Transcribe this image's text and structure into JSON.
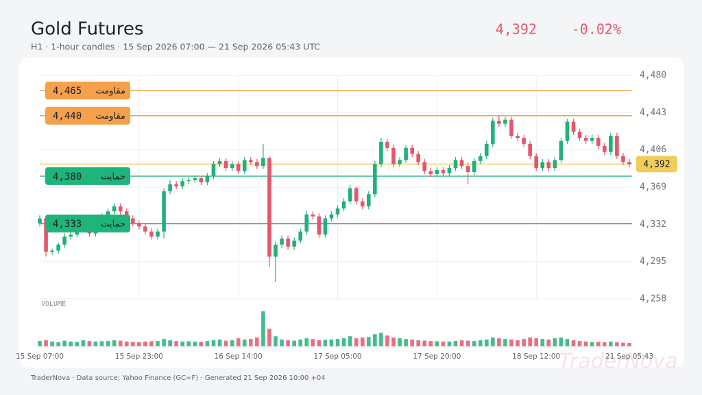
{
  "chart_data": {
    "type": "candlestick",
    "title": "Gold Futures",
    "subtitle": "H1 · 1-hour candles · 15 Sep 2026 07:00 — 21 Sep 2026 05:43 UTC",
    "last_price": {
      "value": 4392,
      "label": "4,392"
    },
    "change": {
      "value": -0.02,
      "label": "-0.02%"
    },
    "volume_label": "VOLUME",
    "footer": "TraderNova · Data source: Yahoo Finance (GC=F) · Generated 21 Sep 2026 10:00 +04",
    "watermark": "TraderNova",
    "up_color": "#22b07d",
    "down_color": "#e5566c",
    "ylim": [
      4258,
      4480
    ],
    "yticks": [
      {
        "value": 4258,
        "label": "4,258"
      },
      {
        "value": 4295,
        "label": "4,295"
      },
      {
        "value": 4332,
        "label": "4,332"
      },
      {
        "value": 4369,
        "label": "4,369"
      },
      {
        "value": 4406,
        "label": "4,406"
      },
      {
        "value": 4443,
        "label": "4,443"
      },
      {
        "value": 4480,
        "label": "4,480"
      }
    ],
    "grid": true,
    "x_labels": [
      {
        "index": 0,
        "label": "15 Sep 07:00"
      },
      {
        "index": 16,
        "label": "15 Sep 23:00"
      },
      {
        "index": 32,
        "label": "16 Sep 14:00"
      },
      {
        "index": 48,
        "label": "17 Sep 05:00"
      },
      {
        "index": 64,
        "label": "17 Sep 20:00"
      },
      {
        "index": 80,
        "label": "18 Sep 12:00"
      },
      {
        "index": 95,
        "label": "21 Sep 05:43"
      }
    ],
    "levels": [
      {
        "value": 4465,
        "label": "4,465",
        "name": "مقاومت",
        "color": "#f5a04a"
      },
      {
        "value": 4440,
        "label": "4,440",
        "name": "مقاومت",
        "color": "#f5a04a"
      },
      {
        "value": 4380,
        "label": "4,380",
        "name": "حمایت",
        "color": "#1fb47a"
      },
      {
        "value": 4333,
        "label": "4,333",
        "name": "حمایت",
        "color": "#1fb47a"
      }
    ],
    "last_price_color": "#f2cc5a",
    "open": [
      4333,
      4338,
      4305,
      4306,
      4312,
      4320,
      4322,
      4328,
      4330,
      4323,
      4332,
      4340,
      4345,
      4350,
      4345,
      4338,
      4333,
      4330,
      4325,
      4320,
      4325,
      4365,
      4372,
      4370,
      4375,
      4376,
      4378,
      4374,
      4380,
      4392,
      4395,
      4388,
      4392,
      4385,
      4396,
      4394,
      4390,
      4398,
      4300,
      4312,
      4318,
      4310,
      4316,
      4325,
      4342,
      4340,
      4322,
      4338,
      4342,
      4348,
      4355,
      4368,
      4355,
      4350,
      4362,
      4392,
      4414,
      4408,
      4392,
      4396,
      4408,
      4402,
      4394,
      4385,
      4382,
      4386,
      4383,
      4388,
      4396,
      4390,
      4384,
      4395,
      4400,
      4412,
      4435,
      4432,
      4436,
      4420,
      4418,
      4412,
      4400,
      4388,
      4394,
      4388,
      4396,
      4415,
      4434,
      4424,
      4418,
      4415,
      4418,
      4410,
      4404,
      4420,
      4400,
      4394
    ],
    "high": [
      4341,
      4340,
      4308,
      4314,
      4323,
      4325,
      4331,
      4333,
      4333,
      4335,
      4343,
      4348,
      4353,
      4353,
      4348,
      4341,
      4336,
      4333,
      4328,
      4328,
      4368,
      4376,
      4375,
      4378,
      4379,
      4381,
      4380,
      4383,
      4395,
      4398,
      4398,
      4395,
      4395,
      4399,
      4399,
      4397,
      4412,
      4400,
      4315,
      4321,
      4321,
      4319,
      4328,
      4345,
      4345,
      4343,
      4341,
      4345,
      4351,
      4358,
      4371,
      4370,
      4358,
      4365,
      4395,
      4418,
      4417,
      4411,
      4399,
      4411,
      4411,
      4405,
      4397,
      4388,
      4389,
      4389,
      4391,
      4399,
      4399,
      4393,
      4398,
      4403,
      4415,
      4438,
      4440,
      4439,
      4439,
      4423,
      4421,
      4415,
      4403,
      4397,
      4397,
      4399,
      4418,
      4437,
      4437,
      4427,
      4421,
      4421,
      4421,
      4413,
      4423,
      4423,
      4403,
      4397
    ],
    "low": [
      4330,
      4300,
      4302,
      4303,
      4309,
      4317,
      4319,
      4325,
      4320,
      4320,
      4329,
      4337,
      4342,
      4342,
      4335,
      4330,
      4327,
      4322,
      4317,
      4317,
      4318,
      4362,
      4367,
      4367,
      4372,
      4373,
      4371,
      4371,
      4377,
      4389,
      4385,
      4385,
      4382,
      4382,
      4391,
      4387,
      4387,
      4290,
      4275,
      4309,
      4307,
      4307,
      4313,
      4322,
      4337,
      4319,
      4319,
      4335,
      4339,
      4345,
      4352,
      4352,
      4347,
      4347,
      4359,
      4389,
      4405,
      4389,
      4389,
      4393,
      4399,
      4391,
      4382,
      4379,
      4379,
      4380,
      4380,
      4385,
      4387,
      4372,
      4381,
      4392,
      4397,
      4409,
      4429,
      4429,
      4417,
      4415,
      4409,
      4397,
      4385,
      4385,
      4385,
      4385,
      4393,
      4412,
      4421,
      4415,
      4412,
      4412,
      4407,
      4401,
      4401,
      4397,
      4391,
      4389
    ],
    "close": [
      4338,
      4305,
      4306,
      4312,
      4320,
      4322,
      4328,
      4330,
      4323,
      4332,
      4340,
      4345,
      4350,
      4345,
      4338,
      4333,
      4330,
      4325,
      4320,
      4325,
      4365,
      4372,
      4370,
      4375,
      4376,
      4378,
      4374,
      4380,
      4392,
      4395,
      4388,
      4392,
      4385,
      4396,
      4394,
      4390,
      4398,
      4300,
      4312,
      4318,
      4310,
      4316,
      4325,
      4342,
      4340,
      4322,
      4338,
      4342,
      4348,
      4355,
      4368,
      4355,
      4350,
      4362,
      4392,
      4414,
      4408,
      4392,
      4396,
      4408,
      4402,
      4394,
      4385,
      4382,
      4386,
      4383,
      4388,
      4396,
      4390,
      4384,
      4395,
      4400,
      4412,
      4435,
      4432,
      4436,
      4420,
      4418,
      4412,
      4400,
      4388,
      4394,
      4388,
      4396,
      4415,
      4434,
      4424,
      4418,
      4415,
      4418,
      4410,
      4404,
      4420,
      4400,
      4394,
      4392
    ],
    "volume": [
      800,
      900,
      700,
      600,
      850,
      700,
      650,
      900,
      800,
      700,
      750,
      800,
      900,
      850,
      700,
      650,
      600,
      700,
      750,
      800,
      1100,
      900,
      800,
      700,
      750,
      700,
      650,
      800,
      900,
      1000,
      850,
      900,
      1200,
      1000,
      1100,
      1300,
      5200,
      2600,
      1500,
      1000,
      900,
      850,
      1000,
      1200,
      1100,
      900,
      950,
      1000,
      1100,
      1200,
      1500,
      1200,
      1300,
      1400,
      1800,
      2000,
      1600,
      1300,
      1200,
      1100,
      1000,
      900,
      850,
      800,
      750,
      700,
      700,
      800,
      900,
      850,
      800,
      900,
      1000,
      1300,
      1200,
      1100,
      1000,
      900,
      1100,
      1300,
      1200,
      1100,
      1000,
      1200,
      1300,
      1100,
      900,
      800,
      700,
      600,
      650,
      600,
      700,
      600,
      550,
      500
    ],
    "volume_ylim": [
      0,
      5400
    ]
  }
}
